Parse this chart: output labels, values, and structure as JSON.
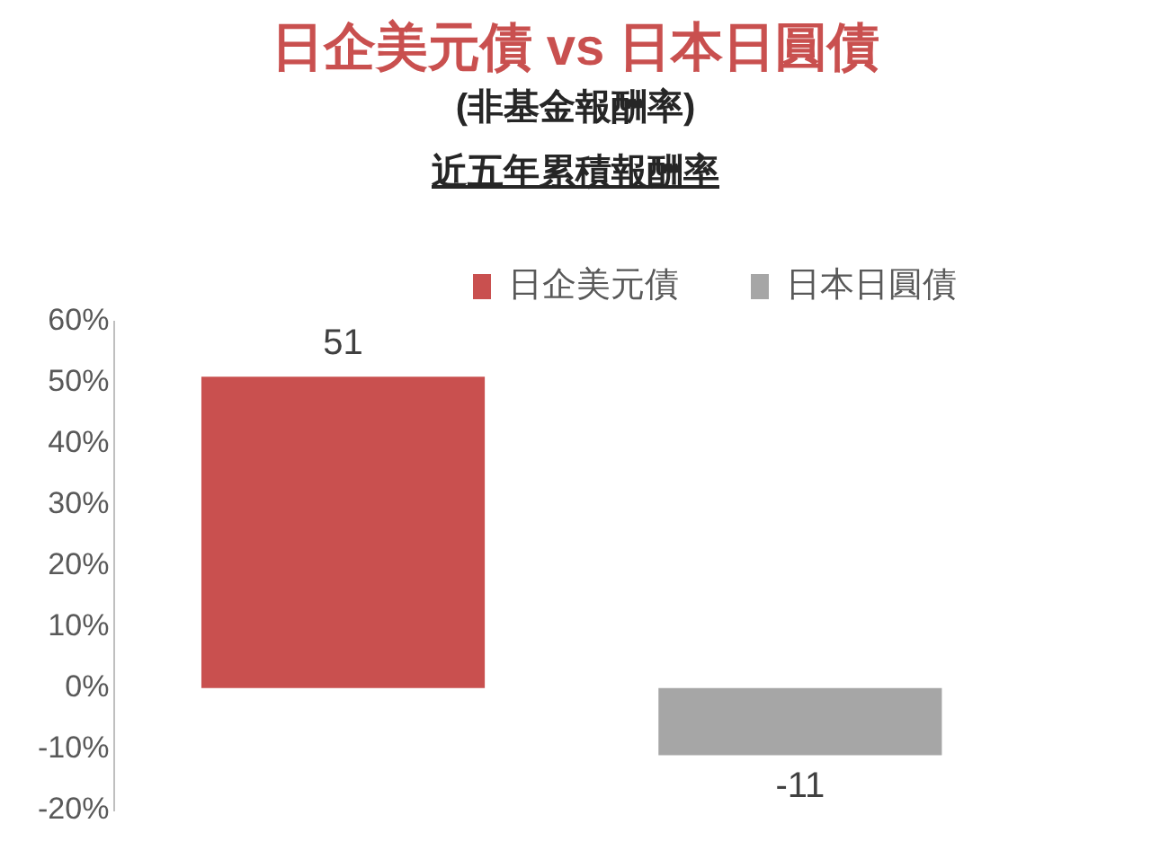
{
  "chart_data": {
    "type": "bar",
    "title": "日企美元債 vs 日本日圓債",
    "subtitle": "(非基金報酬率)",
    "annotations": [
      "近五年累積報酬率"
    ],
    "categories": [
      null
    ],
    "series": [
      {
        "name": "日企美元債",
        "color": "#c9504f",
        "values": [
          51
        ]
      },
      {
        "name": "日本日圓債",
        "color": "#a6a6a6",
        "values": [
          -11
        ]
      }
    ],
    "ylim": [
      -20,
      60
    ],
    "yticks": [
      {
        "value": -20,
        "label": "-20%"
      },
      {
        "value": -10,
        "label": "-10%"
      },
      {
        "value": 0,
        "label": "0%"
      },
      {
        "value": 10,
        "label": "10%"
      },
      {
        "value": 20,
        "label": "20%"
      },
      {
        "value": 30,
        "label": "30%"
      },
      {
        "value": 40,
        "label": "40%"
      },
      {
        "value": 50,
        "label": "50%"
      },
      {
        "value": 60,
        "label": "60%"
      }
    ],
    "grid": false,
    "legend": "top",
    "data_labels": true
  }
}
